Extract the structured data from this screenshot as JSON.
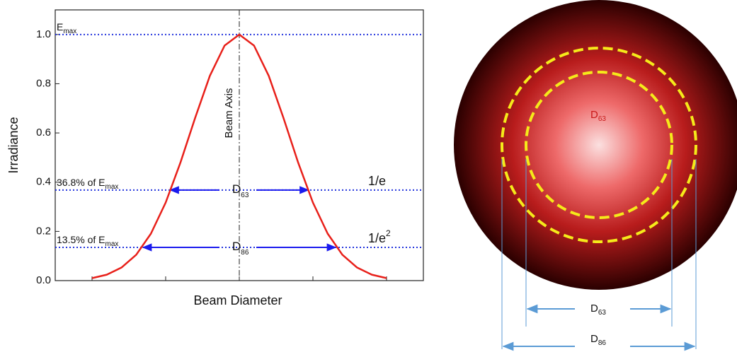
{
  "chart_data": {
    "type": "line",
    "x_label": "Beam Diameter",
    "y_label": "Irradiance",
    "x": [
      -2.0,
      -1.8,
      -1.6,
      -1.4,
      -1.2,
      -1.0,
      -0.8,
      -0.6,
      -0.4,
      -0.2,
      0,
      0.2,
      0.4,
      0.6,
      0.8,
      1.0,
      1.2,
      1.4,
      1.6,
      1.8,
      2.0
    ],
    "series": [
      {
        "color": "#e8201a",
        "values": [
          0.01,
          0.024,
          0.053,
          0.105,
          0.191,
          0.317,
          0.479,
          0.661,
          0.832,
          0.955,
          1,
          0.955,
          0.832,
          0.661,
          0.479,
          0.317,
          0.191,
          0.105,
          0.053,
          0.024,
          0.01
        ]
      }
    ],
    "xlim": [
      -2.5,
      2.5
    ],
    "xticks": [
      -2,
      -1,
      0,
      1,
      2
    ],
    "ylim": [
      0,
      1.1
    ],
    "yticks": [
      {
        "value": 0,
        "label": "0.0"
      },
      0.2,
      0.4,
      0.6,
      0.8,
      {
        "value": 1,
        "label": "1.0"
      }
    ],
    "axis_line": {
      "x": 0,
      "label": "Beam Axis"
    },
    "reference_lines": [
      {
        "value": 1,
        "label": "E",
        "label_sub": "max"
      },
      {
        "value": 0.368,
        "label": "36.8% of E",
        "label_sub": "max",
        "right_label": "1/e"
      },
      {
        "value": 0.135,
        "label": "13.5% of E",
        "label_sub": "max",
        "right_label": "1/e",
        "right_sup": "2"
      }
    ],
    "arrows": [
      {
        "y": 0.368,
        "x": [
          -0.94,
          0.94
        ],
        "label": "D",
        "label_sub": "63"
      },
      {
        "y": 0.135,
        "x": [
          -1.31,
          1.31
        ],
        "label": "D",
        "label_sub": "86"
      }
    ]
  },
  "diagram": {
    "inner_label": {
      "main": "D",
      "sub": "63"
    },
    "inner_dimension": {
      "main": "D",
      "sub": "63"
    },
    "outer_dimension": {
      "main": "D",
      "sub": "86"
    }
  }
}
